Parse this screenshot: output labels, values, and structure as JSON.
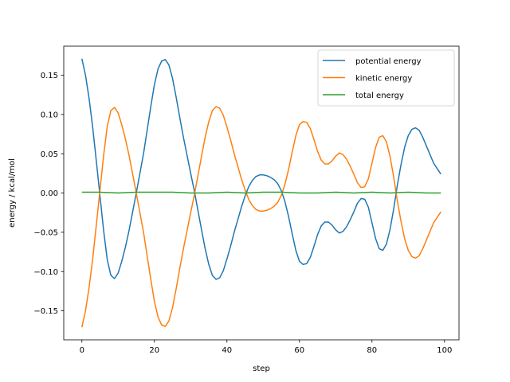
{
  "chart_data": {
    "type": "line",
    "title": "",
    "xlabel": "step",
    "ylabel": "energy / kcal/mol",
    "xlim": [
      -5,
      104
    ],
    "ylim": [
      -0.187,
      0.187
    ],
    "xticks": [
      0,
      20,
      40,
      60,
      80,
      100
    ],
    "yticks": [
      -0.15,
      -0.1,
      -0.05,
      0.0,
      0.05,
      0.1,
      0.15
    ],
    "xtick_labels": [
      "0",
      "20",
      "40",
      "60",
      "80",
      "100"
    ],
    "ytick_labels": [
      "−0.15",
      "−0.10",
      "−0.05",
      "0.00",
      "0.05",
      "0.10",
      "0.15"
    ],
    "grid": false,
    "legend_position": "top-right",
    "series": [
      {
        "name": "potential energy",
        "color": "#1f77b4",
        "x": [
          0,
          1,
          2,
          3,
          4,
          5,
          6,
          7,
          8,
          9,
          10,
          11,
          12,
          13,
          14,
          15,
          16,
          17,
          18,
          19,
          20,
          21,
          22,
          23,
          24,
          25,
          26,
          27,
          28,
          29,
          30,
          31,
          32,
          33,
          34,
          35,
          36,
          37,
          38,
          39,
          40,
          41,
          42,
          43,
          44,
          45,
          46,
          47,
          48,
          49,
          50,
          51,
          52,
          53,
          54,
          55,
          56,
          57,
          58,
          59,
          60,
          61,
          62,
          63,
          64,
          65,
          66,
          67,
          68,
          69,
          70,
          71,
          72,
          73,
          74,
          75,
          76,
          77,
          78,
          79,
          80,
          81,
          82,
          83,
          84,
          85,
          86,
          87,
          88,
          89,
          90,
          91,
          92,
          93,
          94,
          95,
          96,
          97,
          98,
          99
        ],
        "y": [
          0.171,
          0.15,
          0.12,
          0.083,
          0.04,
          -0.004,
          -0.048,
          -0.085,
          -0.105,
          -0.109,
          -0.102,
          -0.087,
          -0.069,
          -0.048,
          -0.024,
          0.0,
          0.025,
          0.05,
          0.08,
          0.11,
          0.138,
          0.158,
          0.168,
          0.17,
          0.163,
          0.146,
          0.122,
          0.096,
          0.071,
          0.048,
          0.025,
          0.003,
          -0.022,
          -0.047,
          -0.071,
          -0.091,
          -0.105,
          -0.11,
          -0.108,
          -0.099,
          -0.084,
          -0.068,
          -0.05,
          -0.034,
          -0.018,
          -0.004,
          0.008,
          0.016,
          0.021,
          0.023,
          0.023,
          0.022,
          0.02,
          0.017,
          0.012,
          0.003,
          -0.011,
          -0.03,
          -0.052,
          -0.073,
          -0.087,
          -0.091,
          -0.09,
          -0.082,
          -0.068,
          -0.053,
          -0.042,
          -0.037,
          -0.037,
          -0.041,
          -0.047,
          -0.051,
          -0.049,
          -0.043,
          -0.034,
          -0.024,
          -0.013,
          -0.007,
          -0.008,
          -0.018,
          -0.038,
          -0.058,
          -0.071,
          -0.073,
          -0.065,
          -0.046,
          -0.02,
          0.01,
          0.036,
          0.058,
          0.073,
          0.081,
          0.083,
          0.08,
          0.071,
          0.06,
          0.049,
          0.038,
          0.031,
          0.024
        ]
      },
      {
        "name": "kinetic energy",
        "color": "#ff7f0e",
        "x": [
          0,
          1,
          2,
          3,
          4,
          5,
          6,
          7,
          8,
          9,
          10,
          11,
          12,
          13,
          14,
          15,
          16,
          17,
          18,
          19,
          20,
          21,
          22,
          23,
          24,
          25,
          26,
          27,
          28,
          29,
          30,
          31,
          32,
          33,
          34,
          35,
          36,
          37,
          38,
          39,
          40,
          41,
          42,
          43,
          44,
          45,
          46,
          47,
          48,
          49,
          50,
          51,
          52,
          53,
          54,
          55,
          56,
          57,
          58,
          59,
          60,
          61,
          62,
          63,
          64,
          65,
          66,
          67,
          68,
          69,
          70,
          71,
          72,
          73,
          74,
          75,
          76,
          77,
          78,
          79,
          80,
          81,
          82,
          83,
          84,
          85,
          86,
          87,
          88,
          89,
          90,
          91,
          92,
          93,
          94,
          95,
          96,
          97,
          98,
          99
        ],
        "y": [
          -0.171,
          -0.15,
          -0.12,
          -0.083,
          -0.04,
          0.004,
          0.048,
          0.085,
          0.105,
          0.109,
          0.102,
          0.087,
          0.069,
          0.048,
          0.024,
          0.0,
          -0.025,
          -0.05,
          -0.08,
          -0.11,
          -0.138,
          -0.158,
          -0.168,
          -0.17,
          -0.163,
          -0.146,
          -0.122,
          -0.096,
          -0.071,
          -0.048,
          -0.025,
          -0.003,
          0.022,
          0.047,
          0.071,
          0.091,
          0.105,
          0.11,
          0.108,
          0.099,
          0.084,
          0.068,
          0.05,
          0.034,
          0.018,
          0.004,
          -0.008,
          -0.016,
          -0.021,
          -0.023,
          -0.023,
          -0.022,
          -0.02,
          -0.017,
          -0.012,
          -0.003,
          0.011,
          0.03,
          0.052,
          0.073,
          0.087,
          0.091,
          0.09,
          0.082,
          0.068,
          0.053,
          0.042,
          0.037,
          0.037,
          0.041,
          0.047,
          0.051,
          0.049,
          0.043,
          0.034,
          0.024,
          0.013,
          0.007,
          0.008,
          0.018,
          0.038,
          0.058,
          0.071,
          0.073,
          0.065,
          0.046,
          0.02,
          -0.01,
          -0.036,
          -0.058,
          -0.073,
          -0.081,
          -0.083,
          -0.08,
          -0.071,
          -0.06,
          -0.049,
          -0.038,
          -0.031,
          -0.024
        ]
      },
      {
        "name": "total energy",
        "color": "#2ca02c",
        "x": [
          0,
          5,
          10,
          15,
          20,
          25,
          30,
          35,
          40,
          45,
          50,
          55,
          60,
          65,
          70,
          75,
          80,
          85,
          90,
          95,
          99
        ],
        "y": [
          0.001,
          0.001,
          0.0,
          0.001,
          0.001,
          0.001,
          0.0,
          0.0,
          0.001,
          0.0,
          0.001,
          0.001,
          0.0,
          0.0,
          0.001,
          0.0,
          0.001,
          0.0,
          0.001,
          0.0,
          0.0
        ]
      }
    ]
  }
}
